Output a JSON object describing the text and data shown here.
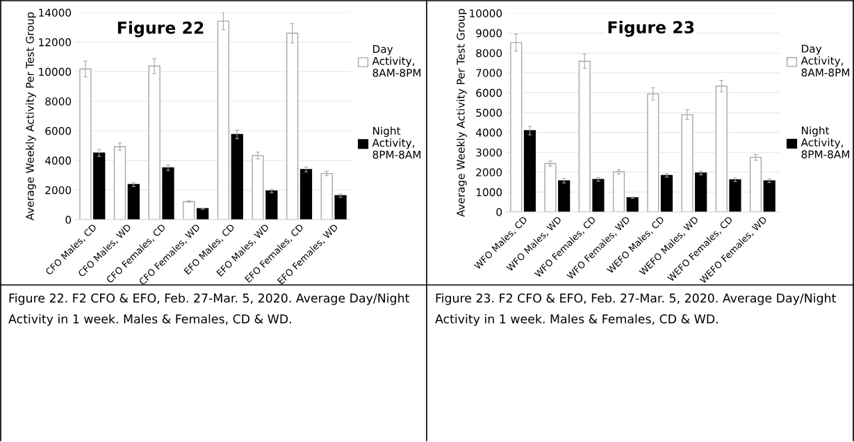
{
  "chart_data": [
    {
      "type": "bar",
      "title": "Figure 22",
      "ylabel": "Average Weekly Activity Per Test Group",
      "categories": [
        "CFO Males, CD",
        "CFO Males, WD",
        "CFO Females, CD",
        "CFO Females, WD",
        "EFO Males, CD",
        "EFO Males, WD",
        "EFO Females, CD",
        "EFO Females, WD"
      ],
      "series": [
        {
          "name": "Day Activity, 8AM-8PM",
          "color": "#ffffff",
          "values": [
            10180,
            4930,
            10380,
            1220,
            13420,
            4330,
            12600,
            3120
          ],
          "errors": [
            530,
            250,
            500,
            50,
            580,
            230,
            650,
            150
          ]
        },
        {
          "name": "Night Activity, 8PM-8AM",
          "color": "#000000",
          "values": [
            4500,
            2370,
            3500,
            740,
            5760,
            1940,
            3390,
            1620
          ],
          "errors": [
            230,
            130,
            180,
            40,
            290,
            120,
            160,
            110
          ]
        }
      ],
      "ylim": [
        0,
        14000
      ],
      "yticks": [
        0,
        2000,
        4000,
        6000,
        8000,
        10000,
        12000,
        14000
      ],
      "grid": "y",
      "legend": "right",
      "annotations": [
        "Figure 22. F2 CFO & EFO, Feb. 27-Mar. 5, 2020. Average Day/Night Activity in 1 week. Males & Females, CD & WD."
      ]
    },
    {
      "type": "bar",
      "title": "Figure 23",
      "ylabel": "Average Weekly Activity Per Test Group",
      "categories": [
        "WFO Males, CD",
        "WFO Males, WD",
        "WFO Females, CD",
        "WFO Females, WD",
        "WEFO Males, CD",
        "WEFO Males, WD",
        "WEFO Females, CD",
        "WEFO Females, WD"
      ],
      "series": [
        {
          "name": "Day Activity, 8AM-8PM",
          "color": "#ffffff",
          "values": [
            8520,
            2430,
            7580,
            2020,
            5940,
            4900,
            6330,
            2750
          ],
          "errors": [
            430,
            130,
            360,
            110,
            310,
            250,
            290,
            150
          ]
        },
        {
          "name": "Night Activity, 8PM-8AM",
          "color": "#000000",
          "values": [
            4090,
            1570,
            1640,
            720,
            1840,
            1960,
            1620,
            1570
          ],
          "errors": [
            210,
            110,
            90,
            30,
            90,
            90,
            90,
            90
          ]
        }
      ],
      "ylim": [
        0,
        10000
      ],
      "yticks": [
        0,
        1000,
        2000,
        3000,
        4000,
        5000,
        6000,
        7000,
        8000,
        9000,
        10000
      ],
      "grid": "y",
      "legend": "right",
      "annotations": [
        "Figure 23. F2 CFO & EFO, Feb. 27-Mar. 5, 2020. Average Day/Night Activity in 1 week. Males & Females, CD & WD."
      ]
    }
  ]
}
